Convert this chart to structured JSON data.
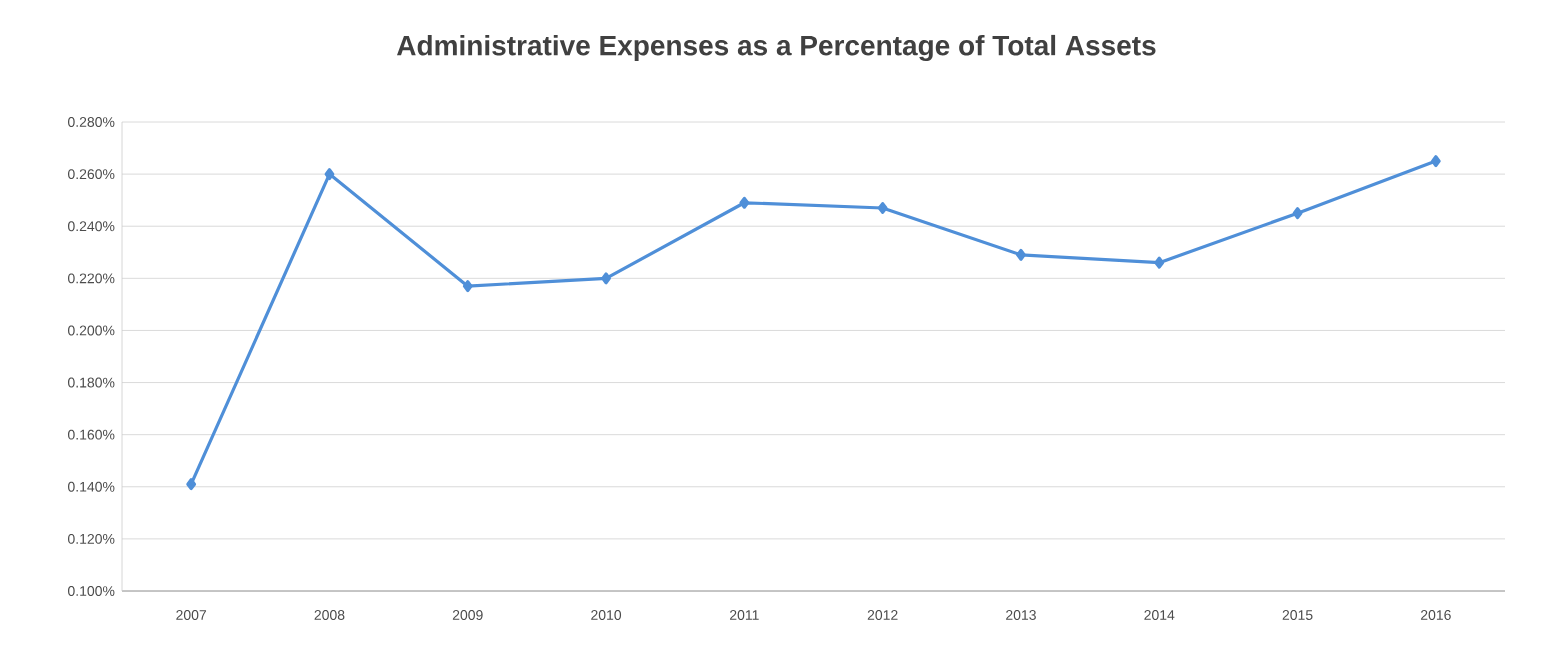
{
  "chart_data": {
    "type": "line",
    "title": "Administrative Expenses as a Percentage of Total Assets",
    "categories": [
      "2007",
      "2008",
      "2009",
      "2010",
      "2011",
      "2012",
      "2013",
      "2014",
      "2015",
      "2016"
    ],
    "series": [
      {
        "color": "#4f8fd8",
        "values": [
          0.141,
          0.26,
          0.217,
          0.22,
          0.249,
          0.247,
          0.229,
          0.226,
          0.245,
          0.265
        ]
      }
    ],
    "ylim": [
      0.1,
      0.28
    ],
    "yticks": [
      {
        "value": 0.1,
        "label": "0.100%"
      },
      {
        "value": 0.12,
        "label": "0.120%"
      },
      {
        "value": 0.14,
        "label": "0.140%"
      },
      {
        "value": 0.16,
        "label": "0.160%"
      },
      {
        "value": 0.18,
        "label": "0.180%"
      },
      {
        "value": 0.2,
        "label": "0.200%"
      },
      {
        "value": 0.22,
        "label": "0.220%"
      },
      {
        "value": 0.24,
        "label": "0.240%"
      },
      {
        "value": 0.26,
        "label": "0.260%"
      },
      {
        "value": 0.28,
        "label": "0.280%"
      }
    ],
    "grid": "y",
    "marker": "diamond",
    "line_style": "solid"
  }
}
